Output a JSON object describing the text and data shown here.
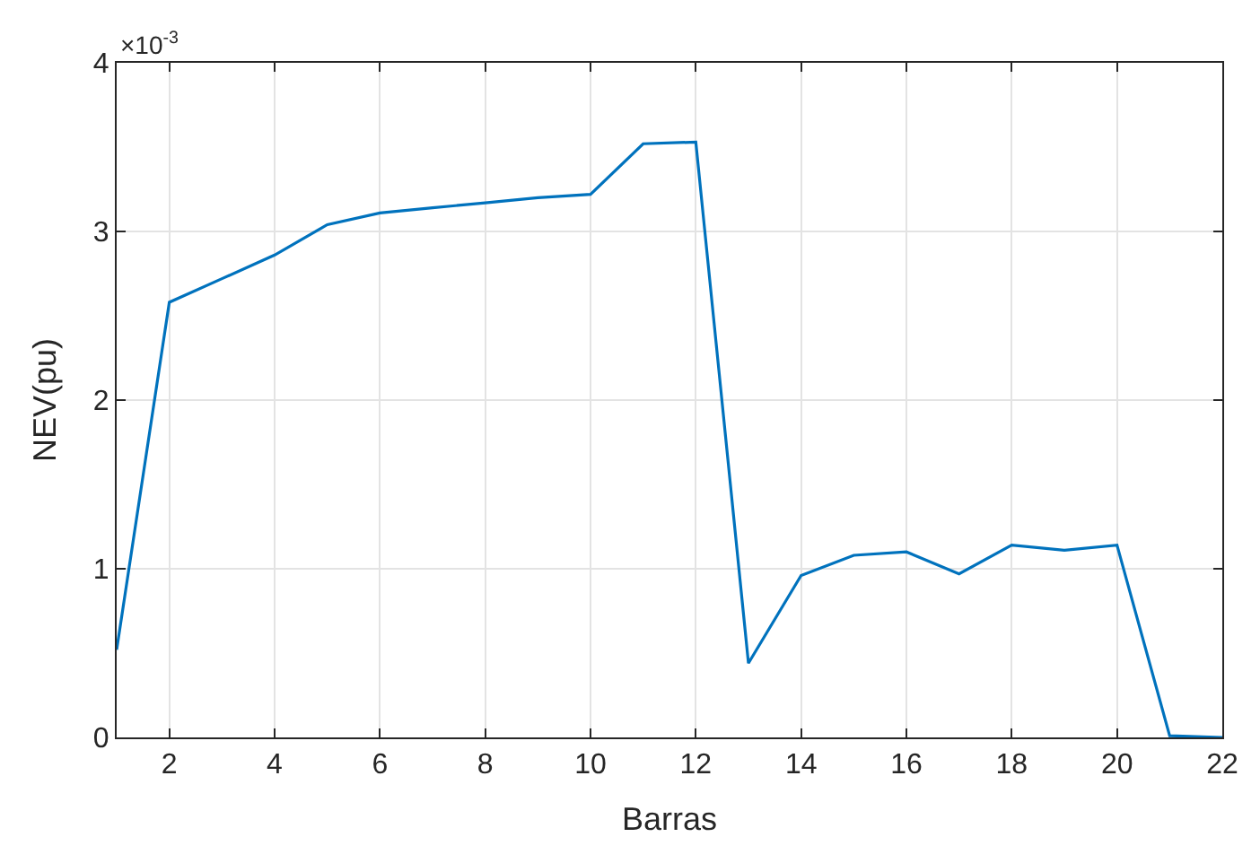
{
  "chart_data": {
    "type": "line",
    "xlabel": "Barras",
    "ylabel": "NEV(pu)",
    "annotations": [
      "×10$^{-3}$"
    ],
    "x": [
      1,
      2,
      3,
      4,
      5,
      6,
      7,
      8,
      9,
      10,
      11,
      12,
      13,
      14,
      15,
      16,
      17,
      18,
      19,
      20,
      21,
      22
    ],
    "series": [
      {
        "color": "#0072bd",
        "values": [
          0.52,
          2.58,
          2.72,
          2.86,
          3.04,
          3.11,
          3.14,
          3.17,
          3.2,
          3.22,
          3.52,
          3.53,
          0.44,
          0.96,
          1.08,
          1.1,
          0.97,
          1.14,
          1.11,
          1.14,
          0.01,
          0.0
        ]
      }
    ],
    "xlim": [
      1,
      22
    ],
    "xticks": [
      2,
      4,
      6,
      8,
      10,
      12,
      14,
      16,
      18,
      20,
      22
    ],
    "ylim": [
      0,
      4
    ],
    "yticks": [
      0,
      1,
      2,
      3,
      4
    ],
    "grid": true,
    "marker": "none",
    "line_style": "solid"
  }
}
